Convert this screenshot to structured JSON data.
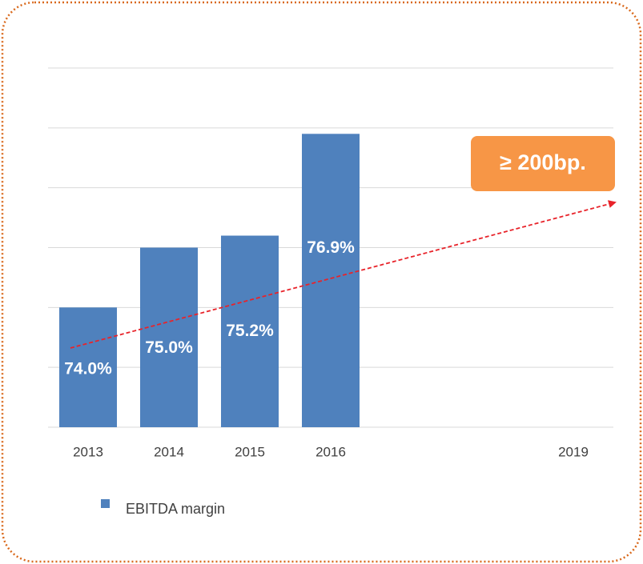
{
  "chart_data": {
    "type": "bar",
    "categories": [
      "2013",
      "2014",
      "2015",
      "2016",
      null,
      null,
      "2019"
    ],
    "series": [
      {
        "name": "EBITDA margin",
        "color": "#4f81bd",
        "values": [
          74.0,
          75.0,
          75.2,
          76.9,
          null,
          null,
          null
        ],
        "value_labels": [
          "74.0%",
          "75.0%",
          "75.2%",
          "76.9%",
          null,
          null,
          null
        ]
      }
    ],
    "ylim": [
      72,
      78
    ],
    "yticks": [
      72,
      73,
      74,
      75,
      76,
      77,
      78
    ],
    "grid": true,
    "legend": "bottom-left",
    "annotation": {
      "text": "≥ 200bp.",
      "color": "#f79646",
      "arrow_color": "#e8232a"
    }
  }
}
